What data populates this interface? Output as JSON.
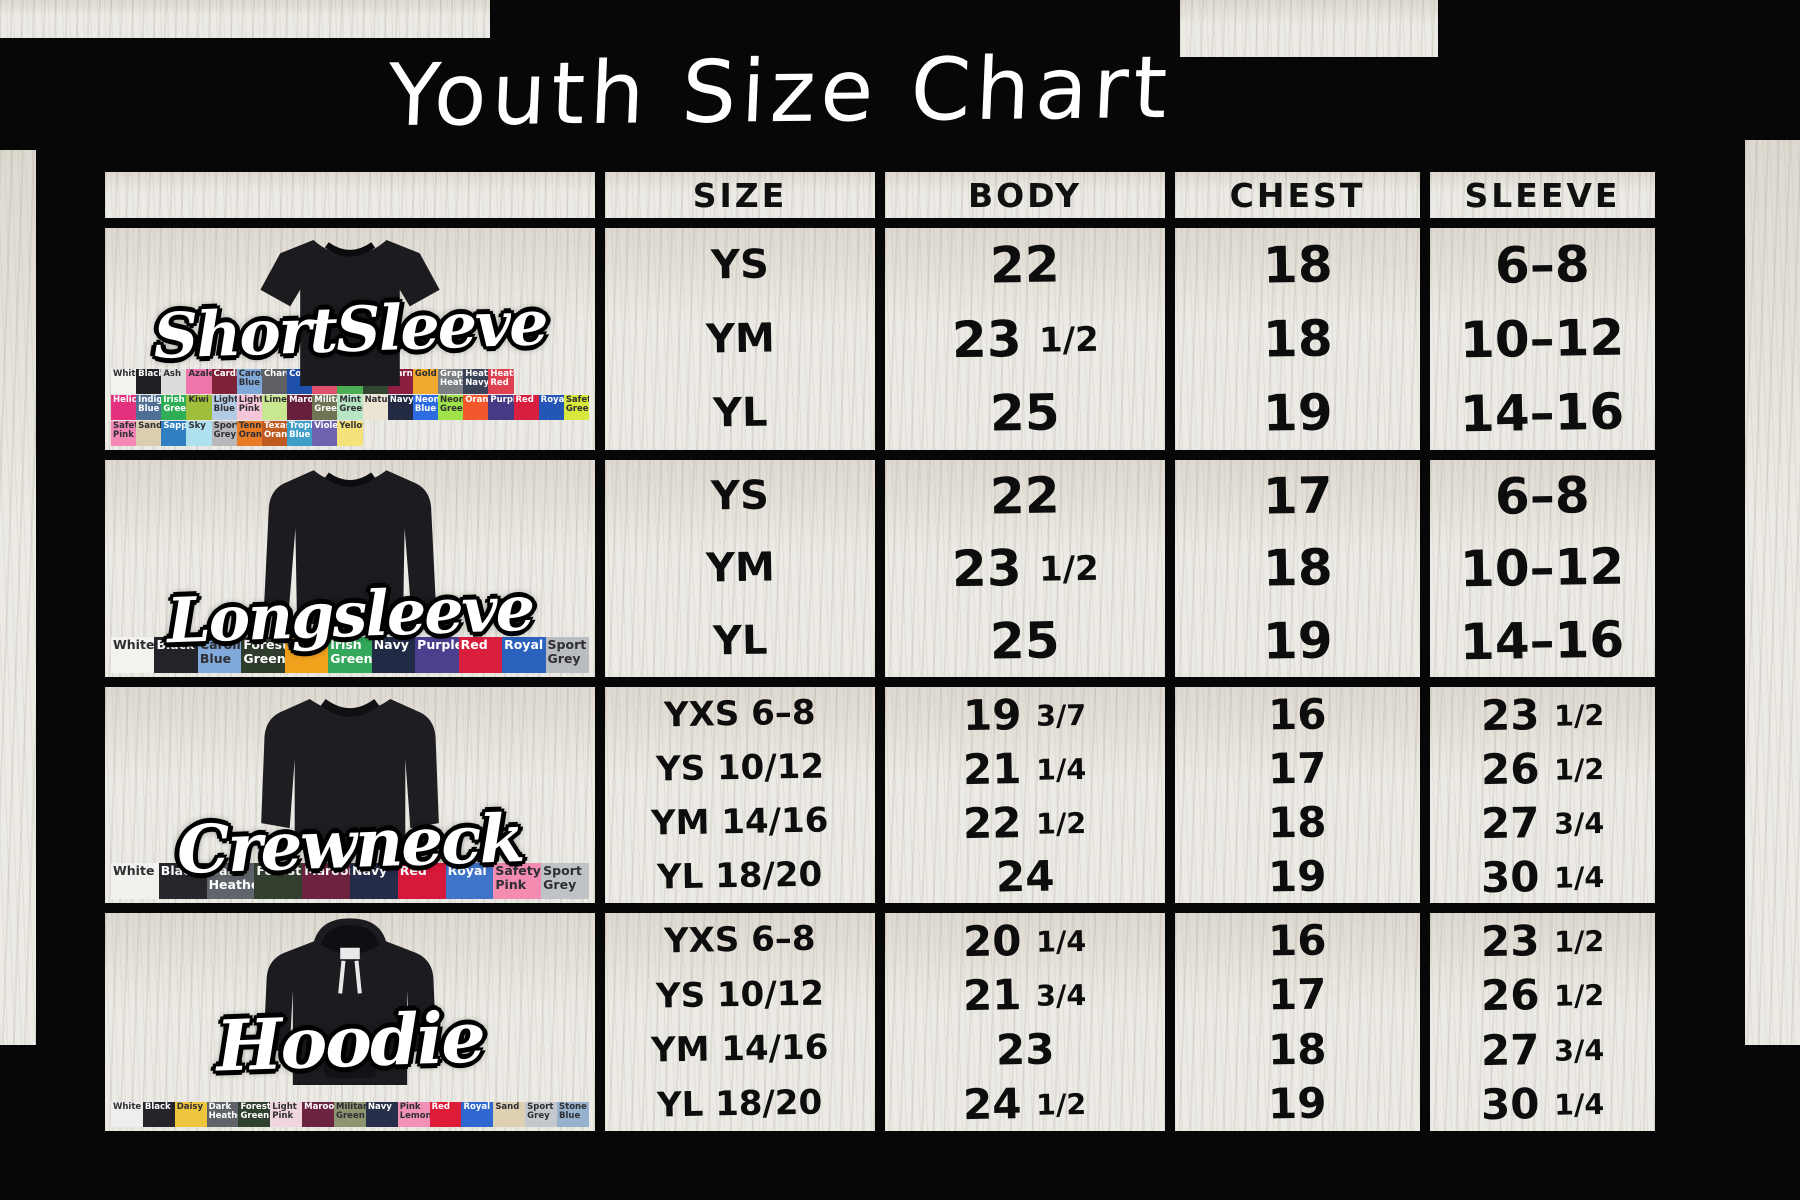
{
  "title": "Youth Size Chart",
  "table": {
    "headers": {
      "size": "SIZE",
      "body": "BODY",
      "chest": "CHEST",
      "sleeve": "SLEEVE"
    }
  },
  "products": [
    {
      "id": "short-sleeve",
      "display_name": "ShortSleeve",
      "garment": "tee",
      "swatch_rows": [
        [
          {
            "label": "White",
            "color": "#f4f2ee"
          },
          {
            "label": "Black",
            "color": "#1f1f26"
          },
          {
            "label": "Ash",
            "color": "#dddcda"
          },
          {
            "label": "Azalea",
            "color": "#ef74ab"
          },
          {
            "label": "Cardinal",
            "color": "#7e2337"
          },
          {
            "label": "Carolina Blue",
            "color": "#7fa8d9"
          },
          {
            "label": "Charcoal",
            "color": "#5e6064"
          },
          {
            "label": "Cobalt",
            "color": "#1e4fa9"
          },
          {
            "label": "",
            "color": "#e0506a"
          },
          {
            "label": "Electric Green",
            "color": "#4bae53"
          },
          {
            "label": "Forest Green",
            "color": "#32462f"
          },
          {
            "label": "Garnet",
            "color": "#8c1f3f"
          },
          {
            "label": "Gold",
            "color": "#f0a92e"
          },
          {
            "label": "Graphite Heather",
            "color": "#7b7e83"
          },
          {
            "label": "Heather Navy",
            "color": "#3a4257"
          },
          {
            "label": "Heather Red",
            "color": "#e04150"
          }
        ],
        [
          {
            "label": "Heliconia",
            "color": "#e4317f"
          },
          {
            "label": "Indigo Blue",
            "color": "#4f6f94"
          },
          {
            "label": "Irish Green",
            "color": "#2fae55"
          },
          {
            "label": "Kiwi",
            "color": "#9fbf3b"
          },
          {
            "label": "Light Blue",
            "color": "#b3cce4"
          },
          {
            "label": "Light Pink",
            "color": "#f4c6d8"
          },
          {
            "label": "Lime",
            "color": "#c9e690"
          },
          {
            "label": "Maroon",
            "color": "#66203c"
          },
          {
            "label": "Military Green",
            "color": "#6d7554"
          },
          {
            "label": "Mint Green",
            "color": "#b8e6c4"
          },
          {
            "label": "Natural",
            "color": "#ece4d2"
          },
          {
            "label": "Navy",
            "color": "#222a44"
          },
          {
            "label": "Neon Blue",
            "color": "#2d6be0"
          },
          {
            "label": "Neon Green",
            "color": "#9fe24a"
          },
          {
            "label": "Orange",
            "color": "#f2582b"
          },
          {
            "label": "Purple",
            "color": "#463a85"
          },
          {
            "label": "Red",
            "color": "#d81f3f"
          },
          {
            "label": "Royal",
            "color": "#2456b8"
          },
          {
            "label": "Safety Green",
            "color": "#d8e83c"
          }
        ],
        [
          {
            "label": "Safety Pink",
            "color": "#f388b4"
          },
          {
            "label": "Sand",
            "color": "#dbcdaf"
          },
          {
            "label": "Sapphire",
            "color": "#2f7fc2"
          },
          {
            "label": "Sky",
            "color": "#aee0ee"
          },
          {
            "label": "Sport Grey",
            "color": "#b6b8ba"
          },
          {
            "label": "Tennessee Orange",
            "color": "#e87c26"
          },
          {
            "label": "Texas Orange",
            "color": "#bf5b20"
          },
          {
            "label": "Tropical Blue",
            "color": "#3f9fc9"
          },
          {
            "label": "Violet",
            "color": "#6f62b0"
          },
          {
            "label": "Yellow",
            "color": "#f5e27a"
          }
        ]
      ]
    },
    {
      "id": "longsleeve",
      "display_name": "Longsleeve",
      "garment": "longsleeve",
      "swatch_rows": [
        [
          {
            "label": "White",
            "color": "#f4f2ef"
          },
          {
            "label": "Black",
            "color": "#23232a"
          },
          {
            "label": "Carolina Blue",
            "color": "#82a9dc"
          },
          {
            "label": "Forest Green",
            "color": "#2e3c2c"
          },
          {
            "label": "Gold",
            "color": "#f0a21d"
          },
          {
            "label": "Irish Green",
            "color": "#33a85c"
          },
          {
            "label": "Navy",
            "color": "#222b46"
          },
          {
            "label": "Purple",
            "color": "#4b3f8e"
          },
          {
            "label": "Red",
            "color": "#d91f3d"
          },
          {
            "label": "Royal",
            "color": "#2b62bd"
          },
          {
            "label": "Sport Grey",
            "color": "#b9bcc0"
          }
        ]
      ]
    },
    {
      "id": "crewneck",
      "display_name": "Crewneck",
      "garment": "crew",
      "swatch_rows": [
        [
          {
            "label": "White",
            "color": "#f2f1ee"
          },
          {
            "label": "Black",
            "color": "#26262c"
          },
          {
            "label": "Dark Heather",
            "color": "#60646b"
          },
          {
            "label": "Forest",
            "color": "#333f2e"
          },
          {
            "label": "Maroon",
            "color": "#6d2340"
          },
          {
            "label": "Navy",
            "color": "#242c49"
          },
          {
            "label": "Red",
            "color": "#d6183b"
          },
          {
            "label": "Royal",
            "color": "#3f74c9"
          },
          {
            "label": "Safety Pink",
            "color": "#f48cb2"
          },
          {
            "label": "Sport Grey",
            "color": "#bfc3c7"
          }
        ]
      ]
    },
    {
      "id": "hoodie",
      "display_name": "Hoodie",
      "garment": "hoodie",
      "swatch_rows": [
        [
          {
            "label": "White",
            "color": "#efedee"
          },
          {
            "label": "Black",
            "color": "#24242a"
          },
          {
            "label": "Daisy",
            "color": "#edc63e"
          },
          {
            "label": "Dark Heather",
            "color": "#5f6268"
          },
          {
            "label": "Forest Green",
            "color": "#30402f"
          },
          {
            "label": "Light Pink",
            "color": "#f0d4de"
          },
          {
            "label": "Maroon",
            "color": "#6c2340"
          },
          {
            "label": "Military Green",
            "color": "#8e9370"
          },
          {
            "label": "Navy",
            "color": "#282f4a"
          },
          {
            "label": "Pink Lemonade",
            "color": "#f291b5"
          },
          {
            "label": "Red",
            "color": "#df1c38"
          },
          {
            "label": "Royal",
            "color": "#3068d2"
          },
          {
            "label": "Sand",
            "color": "#dccfb2"
          },
          {
            "label": "Sport Grey",
            "color": "#c4c8cd"
          },
          {
            "label": "Stone Blue",
            "color": "#97b2cc"
          }
        ]
      ]
    }
  ],
  "chart_data": [
    {
      "type": "table",
      "title": "Short Sleeve — Youth Size Chart",
      "columns": [
        "SIZE",
        "BODY",
        "CHEST",
        "SLEEVE"
      ],
      "rows": [
        [
          "YS",
          "22",
          "18",
          "6–8"
        ],
        [
          "YM",
          "23 1/2",
          "18",
          "10–12"
        ],
        [
          "YL",
          "25",
          "19",
          "14–16"
        ]
      ]
    },
    {
      "type": "table",
      "title": "Longsleeve — Youth Size Chart",
      "columns": [
        "SIZE",
        "BODY",
        "CHEST",
        "SLEEVE"
      ],
      "rows": [
        [
          "YS",
          "22",
          "17",
          "6–8"
        ],
        [
          "YM",
          "23 1/2",
          "18",
          "10–12"
        ],
        [
          "YL",
          "25",
          "19",
          "14–16"
        ]
      ]
    },
    {
      "type": "table",
      "title": "Crewneck — Youth Size Chart",
      "columns": [
        "SIZE",
        "BODY",
        "CHEST",
        "SLEEVE"
      ],
      "rows": [
        [
          "YXS 6–8",
          "19 3/7",
          "16",
          "23 1/2"
        ],
        [
          "YS 10/12",
          "21 1/4",
          "17",
          "26 1/2"
        ],
        [
          "YM 14/16",
          "22 1/2",
          "18",
          "27 3/4"
        ],
        [
          "YL 18/20",
          "24",
          "19",
          "30 1/4"
        ]
      ]
    },
    {
      "type": "table",
      "title": "Hoodie — Youth Size Chart",
      "columns": [
        "SIZE",
        "BODY",
        "CHEST",
        "SLEEVE"
      ],
      "rows": [
        [
          "YXS 6–8",
          "20 1/4",
          "16",
          "23 1/2"
        ],
        [
          "YS 10/12",
          "21 3/4",
          "17",
          "26 1/2"
        ],
        [
          "YM 14/16",
          "23",
          "18",
          "27 3/4"
        ],
        [
          "YL 18/20",
          "24 1/2",
          "19",
          "30 1/4"
        ]
      ]
    }
  ]
}
